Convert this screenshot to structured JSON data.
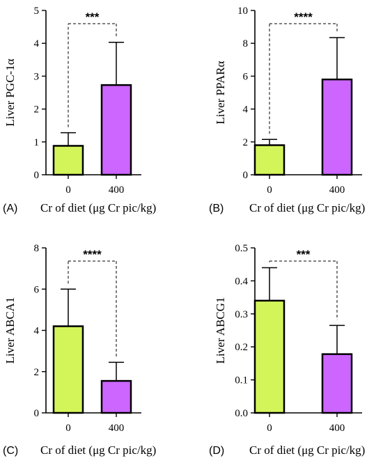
{
  "colors": {
    "control": "#d4f55a",
    "treatment": "#cc66ff",
    "axis": "#000000"
  },
  "xlabel": "Cr of diet (μg Cr pic/kg)",
  "chart_data": [
    {
      "type": "bar",
      "panel": "(A)",
      "categories": [
        "0",
        "400"
      ],
      "values": [
        0.88,
        2.73
      ],
      "errors": [
        0.4,
        1.3
      ],
      "ylabel": "Liver PGC-1α",
      "xlabel": "Cr of diet (μg Cr pic/kg)",
      "ylim": [
        0,
        5
      ],
      "yticks": [
        "0",
        "1",
        "2",
        "3",
        "4",
        "5"
      ],
      "significance": "***"
    },
    {
      "type": "bar",
      "panel": "(B)",
      "categories": [
        "0",
        "400"
      ],
      "values": [
        1.8,
        5.8
      ],
      "errors": [
        0.35,
        2.55
      ],
      "ylabel": "Liver PPARα",
      "xlabel": "Cr of diet (μg Cr pic/kg)",
      "ylim": [
        0,
        10
      ],
      "yticks": [
        "0",
        "2",
        "4",
        "6",
        "8",
        "10"
      ],
      "significance": "****"
    },
    {
      "type": "bar",
      "panel": "(C)",
      "categories": [
        "0",
        "400"
      ],
      "values": [
        4.2,
        1.55
      ],
      "errors": [
        1.8,
        0.9
      ],
      "ylabel": "Liver ABCA1",
      "xlabel": "",
      "ylim": [
        0,
        8
      ],
      "yticks": [
        "0",
        "2",
        "4",
        "6",
        "8"
      ],
      "significance": "****"
    },
    {
      "type": "bar",
      "panel": "(D)",
      "categories": [
        "0",
        "400"
      ],
      "values": [
        0.34,
        0.178
      ],
      "errors": [
        0.1,
        0.087
      ],
      "ylabel": "Liver ABCG1",
      "xlabel": "Cr of diet (μg Cr pic/kg)",
      "ylim": [
        0,
        0.5
      ],
      "yticks": [
        "0.0",
        "0.1",
        "0.2",
        "0.3",
        "0.4",
        "0.5"
      ],
      "significance": "***"
    }
  ]
}
